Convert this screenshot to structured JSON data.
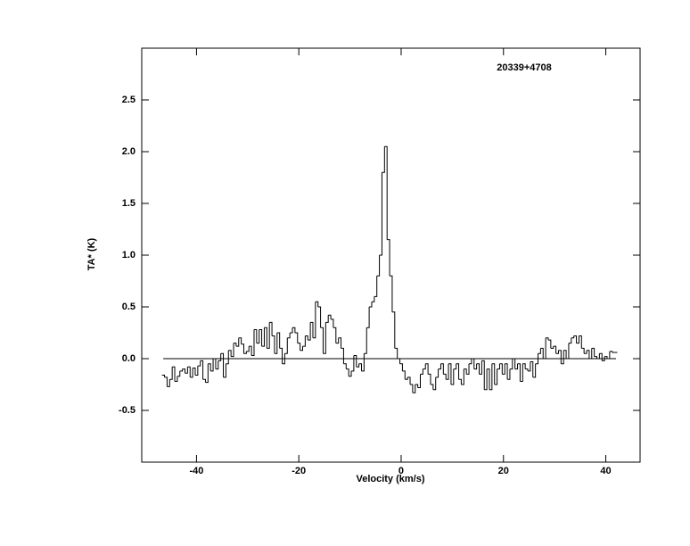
{
  "chart_data": {
    "type": "step",
    "title": "20339+4708",
    "xlabel": "Velocity (km/s)",
    "ylabel": "TA* (K)",
    "x": [
      -46.5,
      -46,
      -45.5,
      -45,
      -44.5,
      -44,
      -43.5,
      -43,
      -42.5,
      -42,
      -41.5,
      -41,
      -40.5,
      -40,
      -39.5,
      -39,
      -38.5,
      -38,
      -37.5,
      -37,
      -36.5,
      -36,
      -35.5,
      -35,
      -34.5,
      -34,
      -33.5,
      -33,
      -32.5,
      -32,
      -31.5,
      -31,
      -30.5,
      -30,
      -29.5,
      -29,
      -28.5,
      -28,
      -27.5,
      -27,
      -26.5,
      -26,
      -25.5,
      -25,
      -24.5,
      -24,
      -23.5,
      -23,
      -22.5,
      -22,
      -21.5,
      -21,
      -20.5,
      -20,
      -19.5,
      -19,
      -18.5,
      -18,
      -17.5,
      -17,
      -16.5,
      -16,
      -15.5,
      -15,
      -14.5,
      -14,
      -13.5,
      -13,
      -12.5,
      -12,
      -11.5,
      -11,
      -10.5,
      -10,
      -9.5,
      -9,
      -8.5,
      -8,
      -7.5,
      -7,
      -6.5,
      -6,
      -5.5,
      -5,
      -4.5,
      -4,
      -3.5,
      -3,
      -2.5,
      -2,
      -1.5,
      -1,
      -0.5,
      0,
      0.5,
      1,
      1.5,
      2,
      2.5,
      3,
      3.5,
      4,
      4.5,
      5,
      5.5,
      6,
      6.5,
      7,
      7.5,
      8,
      8.5,
      9,
      9.5,
      10,
      10.5,
      11,
      11.5,
      12,
      12.5,
      13,
      13.5,
      14,
      14.5,
      15,
      15.5,
      16,
      16.5,
      17,
      17.5,
      18,
      18.5,
      19,
      19.5,
      20,
      20.5,
      21,
      21.5,
      22,
      22.5,
      23,
      23.5,
      24,
      24.5,
      25,
      25.5,
      26,
      26.5,
      27,
      27.5,
      28,
      28.5,
      29,
      29.5,
      30,
      30.5,
      31,
      31.5,
      32,
      32.5,
      33,
      33.5,
      34,
      34.5,
      35,
      35.5,
      36,
      36.5,
      37,
      37.5,
      38,
      38.5,
      39,
      39.5,
      40,
      40.5,
      41,
      41.5,
      42
    ],
    "values": [
      -0.16,
      -0.18,
      -0.27,
      -0.2,
      -0.08,
      -0.22,
      -0.17,
      -0.12,
      -0.1,
      -0.14,
      -0.08,
      -0.18,
      -0.09,
      -0.16,
      -0.07,
      -0.02,
      -0.2,
      -0.23,
      -0.05,
      -0.12,
      0.0,
      -0.1,
      -0.02,
      0.05,
      -0.18,
      -0.05,
      0.08,
      0.02,
      0.15,
      0.12,
      0.2,
      0.14,
      0.05,
      0.07,
      0.12,
      0.03,
      0.28,
      0.15,
      0.28,
      0.12,
      0.3,
      0.1,
      0.35,
      0.22,
      0.05,
      0.25,
      0.1,
      -0.05,
      0.05,
      0.2,
      0.25,
      0.3,
      0.25,
      0.15,
      0.08,
      0.12,
      0.22,
      0.18,
      0.35,
      0.2,
      0.55,
      0.5,
      0.3,
      0.05,
      0.35,
      0.42,
      0.38,
      0.3,
      0.15,
      0.2,
      0.1,
      -0.05,
      -0.1,
      -0.17,
      -0.12,
      0.03,
      -0.08,
      -0.05,
      -0.12,
      0.05,
      0.3,
      0.5,
      0.55,
      0.6,
      0.8,
      1.0,
      1.8,
      2.05,
      1.15,
      0.8,
      0.45,
      0.1,
      0.0,
      -0.05,
      -0.12,
      -0.2,
      -0.18,
      -0.25,
      -0.33,
      -0.25,
      -0.28,
      -0.15,
      -0.1,
      -0.05,
      -0.15,
      -0.25,
      -0.3,
      -0.18,
      -0.1,
      -0.05,
      -0.15,
      -0.2,
      -0.05,
      -0.25,
      -0.1,
      -0.05,
      -0.2,
      -0.25,
      -0.1,
      -0.15,
      -0.05,
      0.0,
      -0.1,
      -0.05,
      -0.15,
      -0.02,
      -0.3,
      -0.1,
      -0.3,
      -0.05,
      -0.25,
      -0.1,
      -0.05,
      -0.15,
      -0.05,
      -0.2,
      -0.1,
      0.0,
      -0.1,
      -0.05,
      -0.22,
      -0.05,
      -0.1,
      -0.12,
      -0.03,
      -0.18,
      -0.05,
      0.05,
      0.1,
      0.0,
      0.2,
      0.18,
      0.1,
      0.12,
      0.05,
      0.08,
      -0.05,
      0.08,
      0.0,
      0.15,
      0.2,
      0.22,
      0.15,
      0.22,
      0.1,
      0.05,
      0.08,
      0.0,
      0.1,
      0.02,
      0.0,
      0.05,
      -0.02,
      0.02,
      0.0,
      0.07,
      0.06,
      0.06
    ],
    "color": "#000000",
    "hline": 0,
    "xlim": [
      -50.7,
      46.7
    ],
    "xticks": [
      -40,
      -20,
      0,
      20,
      40
    ],
    "ylim": [
      -1.0,
      3.0
    ],
    "yticks": [
      -0.5,
      {
        "value": 0,
        "label": "0.0"
      },
      0.5,
      {
        "value": 1,
        "label": "1.0"
      },
      1.5,
      {
        "value": 2,
        "label": "2.0"
      },
      2.5
    ]
  }
}
